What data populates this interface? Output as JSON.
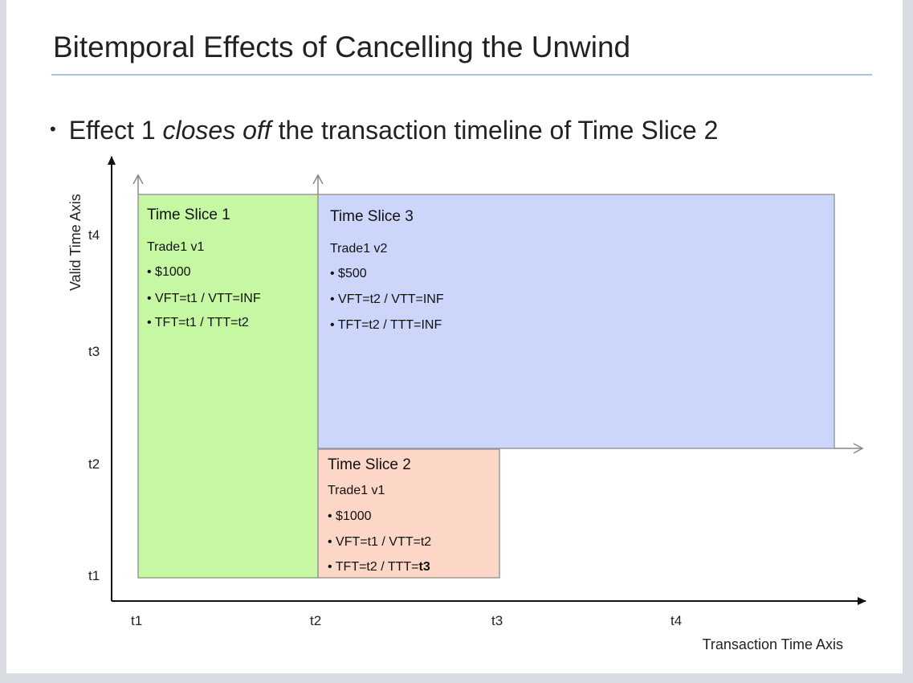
{
  "slide": {
    "title": "Bitemporal Effects of Cancelling the Unwind",
    "bullet": {
      "prefix": "Effect 1 ",
      "emphasis": "closes off",
      "suffix": " the transaction timeline of Time Slice 2"
    }
  },
  "diagram": {
    "y_axis_label": "Valid Time Axis",
    "x_axis_label": "Transaction Time Axis",
    "x_ticks": [
      "t1",
      "t2",
      "t3",
      "t4"
    ],
    "y_ticks": [
      "t1",
      "t2",
      "t3",
      "t4"
    ],
    "slices": [
      {
        "title": "Time Slice 1",
        "trade": "Trade1 v1",
        "bullets": [
          "$1000",
          "VFT=t1 / VTT=INF",
          "TFT=t1 / TTT=t2"
        ],
        "color": "#c6f7a2"
      },
      {
        "title": "Time Slice 3",
        "trade": "Trade1 v2",
        "bullets": [
          "$500",
          "VFT=t2 / VTT=INF",
          "TFT=t2 / TTT=INF"
        ],
        "color": "#ccd5fa"
      },
      {
        "title": "Time Slice 2",
        "trade": "Trade1 v1",
        "bullets": [
          "$1000",
          "VFT=t1 / VTT=t2"
        ],
        "last_bullet_prefix": "TFT=t2 / TTT=",
        "last_bullet_bold": "t3",
        "color": "#fcd6c6"
      }
    ]
  }
}
